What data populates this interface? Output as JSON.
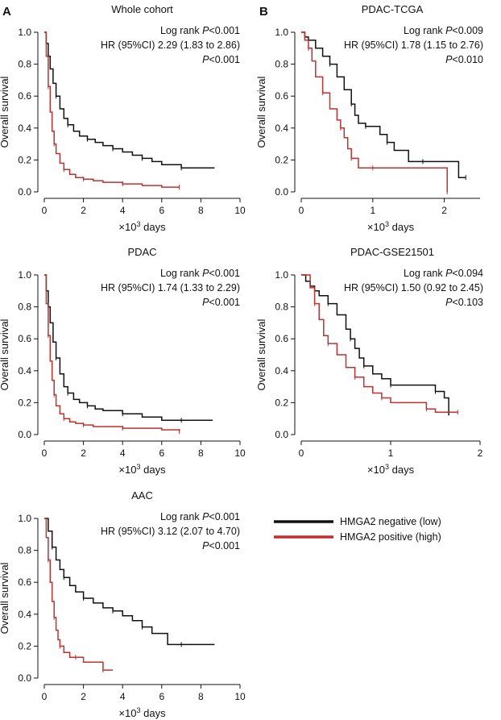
{
  "panel_labels": [
    "A",
    "B"
  ],
  "colors": {
    "negative": "#111111",
    "positive": "#c0302f",
    "axis": "#111111"
  },
  "legend": {
    "entries": [
      {
        "label": "HMGA2 negative (low)",
        "series": "negative"
      },
      {
        "label": "HMGA2 positive (high)",
        "series": "positive"
      }
    ]
  },
  "chart_data": [
    {
      "id": "whole-cohort",
      "type": "line",
      "title": "Whole cohort",
      "ylabel": "Overall survival",
      "xlabel_prefix": "×10",
      "xlabel_sup": "3",
      "xlabel_suffix": " days",
      "xlim": [
        0,
        10
      ],
      "ylim": [
        0,
        1
      ],
      "xticks": [
        "0",
        "2",
        "4",
        "6",
        "8",
        "10"
      ],
      "yticks": [
        "0.0",
        "0.2",
        "0.4",
        "0.6",
        "0.8",
        "1.0"
      ],
      "annotations": [
        {
          "pre": "Log rank ",
          "italic": "P",
          "post": "<0.001"
        },
        {
          "pre": "HR (95%CI) 2.29 (1.83 to 2.86)",
          "italic": "",
          "post": ""
        },
        {
          "pre": "",
          "italic": "P",
          "post": "<0.001"
        }
      ],
      "series": [
        {
          "name": "HMGA2 negative (low)",
          "key": "negative",
          "x": [
            0,
            0.1,
            0.2,
            0.3,
            0.45,
            0.6,
            0.8,
            1.0,
            1.2,
            1.5,
            1.8,
            2.2,
            2.6,
            3.0,
            3.5,
            4.0,
            4.5,
            5.0,
            5.5,
            6.0,
            7.0,
            8.0,
            8.7
          ],
          "y": [
            1.0,
            0.93,
            0.85,
            0.77,
            0.68,
            0.6,
            0.52,
            0.46,
            0.42,
            0.38,
            0.35,
            0.33,
            0.31,
            0.29,
            0.27,
            0.25,
            0.23,
            0.21,
            0.19,
            0.17,
            0.15,
            0.15,
            0.15
          ]
        },
        {
          "name": "HMGA2 positive (high)",
          "key": "positive",
          "x": [
            0,
            0.1,
            0.2,
            0.3,
            0.4,
            0.5,
            0.6,
            0.8,
            1.0,
            1.3,
            1.6,
            2.0,
            2.5,
            3.0,
            4.0,
            5.0,
            6.0,
            6.9
          ],
          "y": [
            1.0,
            0.85,
            0.66,
            0.5,
            0.38,
            0.3,
            0.24,
            0.18,
            0.14,
            0.11,
            0.09,
            0.08,
            0.07,
            0.06,
            0.05,
            0.04,
            0.03,
            0.03
          ]
        }
      ]
    },
    {
      "id": "pdac-tcga",
      "type": "line",
      "title": "PDAC-TCGA",
      "ylabel": "Overall survival",
      "xlabel_prefix": "×10",
      "xlabel_sup": "3",
      "xlabel_suffix": " days",
      "xlim": [
        0,
        2.5
      ],
      "ylim": [
        0,
        1
      ],
      "xticks": [
        "0",
        "1",
        "2"
      ],
      "yticks": [
        "0.0",
        "0.2",
        "0.4",
        "0.6",
        "0.8",
        "1.0"
      ],
      "annotations": [
        {
          "pre": "Log rank ",
          "italic": "P",
          "post": "<0.009"
        },
        {
          "pre": "HR (95%CI) 1.78 (1.15 to 2.76)",
          "italic": "",
          "post": ""
        },
        {
          "pre": "",
          "italic": "P",
          "post": "<0.010"
        }
      ],
      "series": [
        {
          "name": "HMGA2 negative (low)",
          "key": "negative",
          "x": [
            0,
            0.05,
            0.1,
            0.2,
            0.3,
            0.4,
            0.5,
            0.6,
            0.7,
            0.75,
            0.8,
            0.9,
            1.0,
            1.1,
            1.2,
            1.3,
            1.5,
            1.7,
            2.0,
            2.2,
            2.3
          ],
          "y": [
            1.0,
            0.97,
            0.95,
            0.9,
            0.85,
            0.8,
            0.72,
            0.64,
            0.55,
            0.48,
            0.43,
            0.41,
            0.41,
            0.36,
            0.31,
            0.26,
            0.19,
            0.19,
            0.19,
            0.09,
            0.09
          ]
        },
        {
          "name": "HMGA2 positive (high)",
          "key": "positive",
          "x": [
            0,
            0.05,
            0.1,
            0.15,
            0.2,
            0.3,
            0.4,
            0.5,
            0.55,
            0.6,
            0.65,
            0.7,
            0.8,
            0.9,
            1.0,
            1.5,
            2.0,
            2.04
          ],
          "y": [
            1.0,
            0.95,
            0.9,
            0.82,
            0.72,
            0.62,
            0.52,
            0.45,
            0.4,
            0.34,
            0.27,
            0.21,
            0.15,
            0.15,
            0.15,
            0.15,
            0.15,
            0.0
          ]
        }
      ]
    },
    {
      "id": "pdac",
      "type": "line",
      "title": "PDAC",
      "ylabel": "Overall survival",
      "xlabel_prefix": "×10",
      "xlabel_sup": "3",
      "xlabel_suffix": " days",
      "xlim": [
        0,
        10
      ],
      "ylim": [
        0,
        1
      ],
      "xticks": [
        "0",
        "2",
        "4",
        "6",
        "8",
        "10"
      ],
      "yticks": [
        "0.0",
        "0.2",
        "0.4",
        "0.6",
        "0.8",
        "1.0"
      ],
      "annotations": [
        {
          "pre": "Log rank ",
          "italic": "P",
          "post": "<0.001"
        },
        {
          "pre": "HR (95%CI) 1.74 (1.33 to 2.29)",
          "italic": "",
          "post": ""
        },
        {
          "pre": "",
          "italic": "P",
          "post": "<0.001"
        }
      ],
      "series": [
        {
          "name": "HMGA2 negative (low)",
          "key": "negative",
          "x": [
            0,
            0.1,
            0.2,
            0.3,
            0.45,
            0.6,
            0.8,
            1.0,
            1.2,
            1.5,
            1.8,
            2.2,
            2.6,
            3.0,
            4.0,
            5.0,
            6.0,
            7.0,
            8.6
          ],
          "y": [
            1.0,
            0.9,
            0.8,
            0.7,
            0.58,
            0.48,
            0.38,
            0.3,
            0.26,
            0.22,
            0.2,
            0.18,
            0.16,
            0.15,
            0.13,
            0.11,
            0.09,
            0.09,
            0.09
          ]
        },
        {
          "name": "HMGA2 positive (high)",
          "key": "positive",
          "x": [
            0,
            0.1,
            0.2,
            0.3,
            0.4,
            0.5,
            0.6,
            0.8,
            1.0,
            1.3,
            1.6,
            2.0,
            2.5,
            3.0,
            4.0,
            5.0,
            6.0,
            6.9
          ],
          "y": [
            1.0,
            0.82,
            0.62,
            0.46,
            0.34,
            0.25,
            0.18,
            0.13,
            0.1,
            0.08,
            0.07,
            0.06,
            0.05,
            0.05,
            0.04,
            0.04,
            0.03,
            0.02
          ]
        }
      ]
    },
    {
      "id": "pdac-gse21501",
      "type": "line",
      "title": "PDAC-GSE21501",
      "ylabel": "Overall survival",
      "xlabel_prefix": "×10",
      "xlabel_sup": "3",
      "xlabel_suffix": " days",
      "xlim": [
        0,
        2
      ],
      "ylim": [
        0,
        1
      ],
      "xticks": [
        "0",
        "1",
        "2"
      ],
      "yticks": [
        "0.0",
        "0.2",
        "0.4",
        "0.6",
        "0.8",
        "1.0"
      ],
      "annotations": [
        {
          "pre": "Log rank ",
          "italic": "P",
          "post": "<0.094"
        },
        {
          "pre": "HR (95%CI) 1.50 (0.92 to 2.45)",
          "italic": "",
          "post": ""
        },
        {
          "pre": "",
          "italic": "P",
          "post": "<0.103"
        }
      ],
      "series": [
        {
          "name": "HMGA2 negative (low)",
          "key": "negative",
          "x": [
            0,
            0.05,
            0.1,
            0.15,
            0.2,
            0.3,
            0.4,
            0.5,
            0.55,
            0.6,
            0.65,
            0.7,
            0.8,
            0.9,
            1.0,
            1.2,
            1.4,
            1.5,
            1.6,
            1.65
          ],
          "y": [
            1.0,
            0.96,
            0.93,
            0.9,
            0.87,
            0.82,
            0.75,
            0.66,
            0.6,
            0.54,
            0.48,
            0.43,
            0.38,
            0.35,
            0.31,
            0.31,
            0.31,
            0.27,
            0.23,
            0.12
          ]
        },
        {
          "name": "HMGA2 positive (high)",
          "key": "positive",
          "x": [
            0,
            0.1,
            0.15,
            0.2,
            0.25,
            0.3,
            0.4,
            0.5,
            0.6,
            0.7,
            0.8,
            0.9,
            1.0,
            1.2,
            1.4,
            1.5,
            1.6,
            1.75
          ],
          "y": [
            1.0,
            0.92,
            0.82,
            0.72,
            0.62,
            0.57,
            0.5,
            0.42,
            0.36,
            0.3,
            0.26,
            0.23,
            0.2,
            0.2,
            0.16,
            0.14,
            0.14,
            0.14
          ]
        }
      ]
    },
    {
      "id": "aac",
      "type": "line",
      "title": "AAC",
      "ylabel": "Overall survival",
      "xlabel_prefix": "×10",
      "xlabel_sup": "3",
      "xlabel_suffix": " days",
      "xlim": [
        0,
        10
      ],
      "ylim": [
        0,
        1
      ],
      "xticks": [
        "0",
        "2",
        "4",
        "6",
        "8",
        "10"
      ],
      "yticks": [
        "0.0",
        "0.2",
        "0.4",
        "0.6",
        "0.8",
        "1.0"
      ],
      "annotations": [
        {
          "pre": "Log rank ",
          "italic": "P",
          "post": "<0.001"
        },
        {
          "pre": "HR (95%CI) 3.12 (2.07 to 4.70)",
          "italic": "",
          "post": ""
        },
        {
          "pre": "",
          "italic": "P",
          "post": "<0.001"
        }
      ],
      "series": [
        {
          "name": "HMGA2 negative (low)",
          "key": "negative",
          "x": [
            0,
            0.2,
            0.4,
            0.6,
            0.8,
            1.0,
            1.3,
            1.6,
            2.0,
            2.5,
            3.0,
            3.5,
            4.0,
            4.5,
            5.0,
            5.5,
            6.3,
            7.0,
            8.7
          ],
          "y": [
            1.0,
            0.92,
            0.82,
            0.74,
            0.68,
            0.63,
            0.58,
            0.54,
            0.5,
            0.47,
            0.44,
            0.42,
            0.39,
            0.36,
            0.32,
            0.28,
            0.21,
            0.21,
            0.21
          ]
        },
        {
          "name": "HMGA2 positive (high)",
          "key": "positive",
          "x": [
            0,
            0.1,
            0.2,
            0.3,
            0.4,
            0.5,
            0.6,
            0.7,
            0.8,
            1.0,
            1.3,
            1.6,
            2.0,
            2.5,
            3.0,
            3.5
          ],
          "y": [
            1.0,
            0.88,
            0.74,
            0.6,
            0.48,
            0.38,
            0.3,
            0.24,
            0.2,
            0.16,
            0.13,
            0.13,
            0.1,
            0.1,
            0.05,
            0.05
          ]
        }
      ]
    }
  ]
}
